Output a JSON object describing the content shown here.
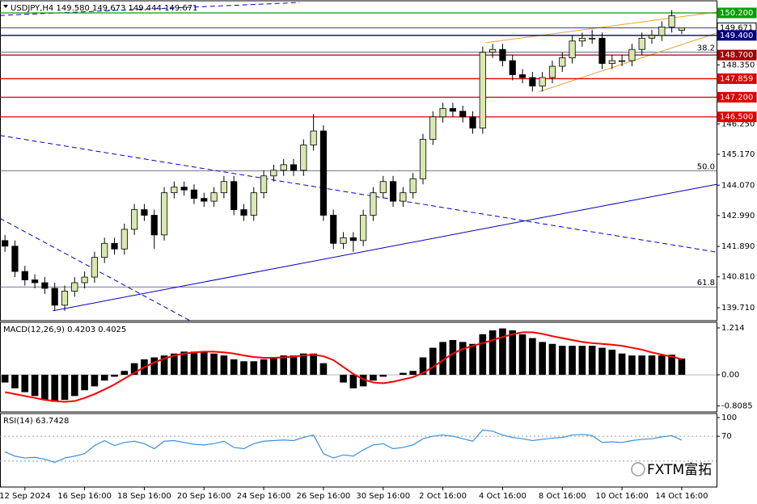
{
  "chart_data": [
    {
      "type": "candlestick",
      "title": "USDJPY,H4 149.580 149.673 149.444 149.671",
      "xlim": [
        -0.5,
        71.5
      ],
      "ylim": [
        139.25,
        150.63
      ],
      "yticks": [
        {
          "value": 148.35,
          "label": "148.350"
        },
        {
          "value": 147.25,
          "label": "147.250"
        },
        {
          "value": 146.25,
          "label": "146.250"
        },
        {
          "value": 145.17,
          "label": "145.170"
        },
        {
          "value": 144.07,
          "label": "144.070"
        },
        {
          "value": 142.99,
          "label": "142.990"
        },
        {
          "value": 141.89,
          "label": "141.890"
        },
        {
          "value": 140.81,
          "label": "140.810"
        },
        {
          "value": 139.71,
          "label": "139.710"
        }
      ],
      "up_color": "#d8e8b0",
      "down_color": "#000000",
      "open": [
        142.1,
        141.9,
        141.0,
        140.7,
        140.6,
        140.4,
        139.8,
        140.3,
        140.6,
        140.8,
        141.5,
        142.0,
        141.8,
        142.5,
        143.2,
        143.0,
        142.3,
        143.8,
        144.0,
        143.9,
        143.6,
        143.5,
        143.8,
        144.2,
        143.2,
        143.0,
        143.8,
        144.4,
        144.6,
        144.8,
        144.6,
        145.5,
        146.0,
        143.0,
        142.0,
        142.2,
        142.1,
        143.0,
        143.8,
        144.2,
        143.5,
        143.8,
        144.3,
        145.7,
        146.5,
        146.8,
        146.7,
        146.5,
        146.1,
        148.8,
        148.9,
        148.5,
        148.0,
        147.9,
        147.6,
        147.9,
        148.3,
        148.6,
        149.2,
        149.3,
        149.3,
        148.4,
        148.5,
        148.5,
        148.9,
        149.3,
        149.4,
        149.7,
        149.58
      ],
      "high": [
        142.3,
        142.1,
        141.2,
        140.9,
        140.8,
        140.6,
        140.5,
        140.8,
        141.0,
        141.7,
        142.2,
        142.2,
        142.7,
        143.4,
        143.4,
        143.2,
        144.0,
        144.2,
        144.2,
        144.1,
        143.8,
        144.0,
        144.4,
        144.4,
        143.4,
        144.0,
        144.6,
        144.8,
        145.0,
        145.0,
        145.7,
        146.6,
        146.2,
        143.2,
        142.4,
        142.4,
        143.2,
        144.0,
        144.4,
        144.4,
        144.0,
        144.5,
        145.9,
        146.7,
        147.0,
        147.0,
        146.9,
        146.7,
        149.0,
        149.1,
        149.1,
        148.7,
        148.2,
        148.1,
        148.1,
        148.5,
        148.8,
        149.4,
        149.5,
        149.6,
        149.5,
        148.7,
        148.7,
        149.1,
        149.5,
        149.6,
        149.9,
        150.3,
        149.673
      ],
      "low": [
        141.7,
        140.8,
        140.5,
        140.4,
        140.2,
        139.6,
        139.6,
        140.1,
        140.4,
        140.6,
        141.3,
        141.6,
        141.6,
        142.3,
        142.8,
        141.8,
        142.1,
        143.6,
        143.7,
        143.4,
        143.3,
        143.3,
        143.6,
        143.0,
        142.8,
        142.8,
        143.6,
        144.2,
        144.4,
        144.4,
        144.4,
        145.3,
        142.8,
        141.8,
        141.8,
        141.7,
        141.9,
        142.8,
        143.6,
        143.3,
        143.3,
        143.6,
        144.1,
        145.5,
        146.3,
        146.5,
        146.3,
        145.9,
        145.9,
        148.6,
        148.3,
        147.8,
        147.7,
        147.4,
        147.4,
        147.7,
        148.1,
        148.4,
        149.0,
        149.1,
        148.2,
        148.2,
        148.3,
        148.3,
        148.7,
        149.1,
        149.2,
        149.5,
        149.444
      ],
      "close": [
        141.9,
        141.0,
        140.7,
        140.6,
        140.4,
        139.8,
        140.3,
        140.6,
        140.8,
        141.5,
        142.0,
        141.8,
        142.5,
        143.2,
        143.0,
        142.3,
        143.8,
        144.0,
        143.9,
        143.6,
        143.5,
        143.8,
        144.2,
        143.2,
        143.0,
        143.8,
        144.4,
        144.6,
        144.8,
        144.6,
        145.5,
        146.0,
        143.0,
        142.0,
        142.2,
        142.1,
        143.0,
        143.8,
        144.2,
        143.5,
        143.8,
        144.3,
        145.7,
        146.5,
        146.8,
        146.7,
        146.5,
        146.1,
        148.8,
        148.9,
        148.5,
        148.0,
        147.9,
        147.6,
        147.9,
        148.3,
        148.6,
        149.2,
        149.3,
        149.3,
        148.4,
        148.5,
        148.5,
        148.9,
        149.3,
        149.4,
        149.7,
        150.1,
        149.671
      ],
      "levels": [
        {
          "value": 150.2,
          "label": "150.200",
          "color": "#00a000"
        },
        {
          "value": 149.671,
          "label": "149.671",
          "color": "#ffffff"
        },
        {
          "value": 149.4,
          "label": "149.400",
          "color": "#000080"
        },
        {
          "value": 148.7,
          "label": "148.700",
          "color": "#a00000"
        },
        {
          "value": 147.859,
          "label": "147.859",
          "color": "#e00000"
        },
        {
          "value": 147.2,
          "label": "147.200",
          "color": "#e00000"
        },
        {
          "value": 146.5,
          "label": "146.500",
          "color": "#e00000"
        }
      ],
      "fib": [
        {
          "value": 148.8,
          "label": "38.2"
        },
        {
          "value": 144.58,
          "label": "50.0"
        },
        {
          "value": 140.45,
          "label": "61.8"
        }
      ],
      "trendlines": [
        {
          "x": [
            4.8,
            71.5
          ],
          "y": [
            139.6,
            144.1
          ],
          "color": "#0000c0",
          "dash": false
        },
        {
          "x": [
            -0.5,
            71.5
          ],
          "y": [
            145.84,
            141.69
          ],
          "color": "#0000c0",
          "dash": true
        },
        {
          "x": [
            -0.5,
            18.6
          ],
          "y": [
            142.89,
            139.25
          ],
          "color": "#0000c0",
          "dash": true
        },
        {
          "x": [
            -0.5,
            29.6
          ],
          "y": [
            150.11,
            150.57
          ],
          "color": "#0000c0",
          "dash": true
        },
        {
          "x": [
            48.3,
            71.5
          ],
          "y": [
            149.14,
            150.23
          ],
          "color": "#f0a030",
          "dash": false
        },
        {
          "x": [
            53.6,
            71.5
          ],
          "y": [
            147.39,
            149.48
          ],
          "color": "#f0a030",
          "dash": false
        }
      ]
    },
    {
      "type": "macd",
      "title": "MACD(12,26,9) 0.4203 0.4025",
      "xlim": [
        -0.5,
        71.5
      ],
      "ylim": [
        -0.962,
        1.36
      ],
      "yticks": [
        1.214,
        {
          "value": 0,
          "label": "0.00"
        },
        -0.8085
      ],
      "series": [
        {
          "name": "MACD",
          "color": "#000000",
          "values": [
            -0.2,
            -0.35,
            -0.45,
            -0.55,
            -0.65,
            -0.7,
            -0.65,
            -0.55,
            -0.4,
            -0.3,
            -0.15,
            -0.05,
            0.1,
            0.3,
            0.4,
            0.45,
            0.5,
            0.55,
            0.6,
            0.6,
            0.6,
            0.55,
            0.5,
            0.4,
            0.35,
            0.35,
            0.4,
            0.45,
            0.5,
            0.5,
            0.55,
            0.55,
            0.3,
            0.0,
            -0.2,
            -0.35,
            -0.3,
            -0.15,
            -0.05,
            0.0,
            0.05,
            0.1,
            0.45,
            0.7,
            0.85,
            0.9,
            0.85,
            0.8,
            1.05,
            1.15,
            1.2,
            1.15,
            1.05,
            0.95,
            0.85,
            0.8,
            0.75,
            0.75,
            0.75,
            0.75,
            0.7,
            0.65,
            0.55,
            0.5,
            0.5,
            0.5,
            0.5,
            0.52,
            0.4203
          ]
        },
        {
          "name": "Signal",
          "color": "#ff0000",
          "values": [
            -0.45,
            -0.5,
            -0.55,
            -0.6,
            -0.65,
            -0.68,
            -0.7,
            -0.68,
            -0.6,
            -0.5,
            -0.38,
            -0.25,
            -0.1,
            0.05,
            0.2,
            0.32,
            0.42,
            0.5,
            0.55,
            0.58,
            0.6,
            0.6,
            0.58,
            0.55,
            0.5,
            0.46,
            0.44,
            0.44,
            0.45,
            0.47,
            0.5,
            0.52,
            0.48,
            0.38,
            0.2,
            0.02,
            -0.12,
            -0.2,
            -0.22,
            -0.18,
            -0.12,
            -0.06,
            0.05,
            0.2,
            0.38,
            0.55,
            0.67,
            0.75,
            0.82,
            0.9,
            0.98,
            1.05,
            1.1,
            1.1,
            1.06,
            1.0,
            0.95,
            0.9,
            0.85,
            0.82,
            0.8,
            0.78,
            0.75,
            0.7,
            0.65,
            0.58,
            0.52,
            0.47,
            0.4025
          ]
        }
      ]
    },
    {
      "type": "line",
      "title": "RSI(14) 63.7428",
      "xlim": [
        -0.5,
        71.5
      ],
      "ylim": [
        -11.7,
        106.5
      ],
      "yticks": [
        100,
        70
      ],
      "levels": [
        70,
        30
      ],
      "xticks": [
        {
          "value": 2,
          "label": "12 Sep 2024"
        },
        {
          "value": 8,
          "label": "16 Sep 16:00"
        },
        {
          "value": 14,
          "label": "18 Sep 16:00"
        },
        {
          "value": 20,
          "label": "20 Sep 16:00"
        },
        {
          "value": 26,
          "label": "24 Sep 16:00"
        },
        {
          "value": 32,
          "label": "26 Sep 16:00"
        },
        {
          "value": 38,
          "label": "30 Sep 16:00"
        },
        {
          "value": 44,
          "label": "2 Oct 16:00"
        },
        {
          "value": 50,
          "label": "4 Oct 16:00"
        },
        {
          "value": 56,
          "label": "8 Oct 16:00"
        },
        {
          "value": 62,
          "label": "10 Oct 16:00"
        },
        {
          "value": 68,
          "label": "14 Oct 16:00"
        }
      ],
      "color": "#3a8fdc",
      "values": [
        45,
        38,
        35,
        36,
        33,
        28,
        35,
        38,
        42,
        55,
        63,
        55,
        60,
        62,
        58,
        50,
        62,
        63,
        60,
        57,
        56,
        58,
        62,
        52,
        50,
        58,
        62,
        63,
        64,
        63,
        68,
        72,
        42,
        35,
        40,
        38,
        48,
        56,
        58,
        50,
        52,
        56,
        66,
        70,
        72,
        70,
        66,
        62,
        80,
        78,
        72,
        68,
        66,
        63,
        65,
        67,
        68,
        72,
        73,
        71,
        60,
        61,
        60,
        63,
        65,
        66,
        69,
        71,
        63.7428
      ]
    }
  ],
  "watermark": "FXTM富拓"
}
